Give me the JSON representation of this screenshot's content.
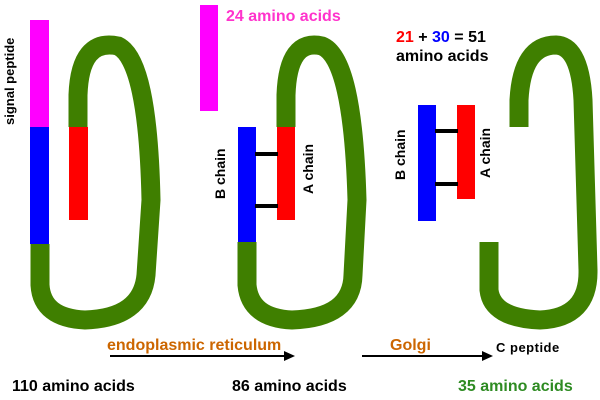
{
  "labels": {
    "signal_peptide": "signal peptide",
    "removed_signal": "24 amino acids",
    "b_chain": "B chain",
    "a_chain": "A chain",
    "sum_a": "21",
    "sum_plus": " + ",
    "sum_b": "30",
    "sum_eq": " = 51",
    "sum_unit": "amino acids",
    "er": "endoplasmic reticulum",
    "golgi": "Golgi",
    "c_peptide": "C peptide",
    "stage1": "110 amino acids",
    "stage2": "86 amino acids",
    "stage3": "35 amino acids"
  },
  "colors": {
    "signal": "#ff00ff",
    "signal_text": "#ff33cc",
    "b_chain": "#0000ff",
    "a_chain": "#ff0000",
    "c_peptide": "#3f7f00",
    "process_text": "#cc6600",
    "c_peptide_text": "#2e8b22"
  }
}
